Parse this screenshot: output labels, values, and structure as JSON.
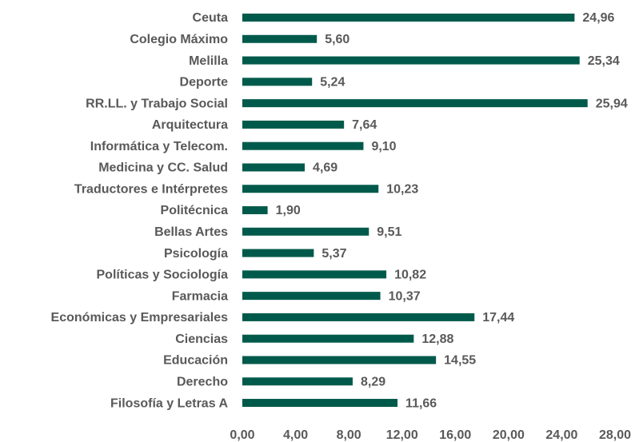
{
  "chart_data": {
    "type": "barh",
    "categories": [
      "Ceuta",
      "Colegio Máximo",
      "Melilla",
      "Deporte",
      "RR.LL. y Trabajo Social",
      "Arquitectura",
      "Informática y Telecom.",
      "Medicina y CC. Salud",
      "Traductores e Intérpretes",
      "Politécnica",
      "Bellas Artes",
      "Psicología",
      "Políticas y Sociología",
      "Farmacia",
      "Económicas y Empresariales",
      "Ciencias",
      "Educación",
      "Derecho",
      "Filosofía y Letras A"
    ],
    "values": [
      24.96,
      5.6,
      25.34,
      5.24,
      25.94,
      7.64,
      9.1,
      4.69,
      10.23,
      1.9,
      9.51,
      5.37,
      10.82,
      10.37,
      17.44,
      12.88,
      14.55,
      8.29,
      11.66
    ],
    "value_labels": [
      "24,96",
      "5,60",
      "25,34",
      "5,24",
      "25,94",
      "7,64",
      "9,10",
      "4,69",
      "10,23",
      "1,90",
      "9,51",
      "5,37",
      "10,82",
      "10,37",
      "17,44",
      "12,88",
      "14,55",
      "8,29",
      "11,66"
    ],
    "color": "#005a4b",
    "xlim": [
      0,
      28
    ],
    "xticks": [
      {
        "value": 0,
        "label": "0,00"
      },
      {
        "value": 4,
        "label": "4,00"
      },
      {
        "value": 8,
        "label": "8,00"
      },
      {
        "value": 12,
        "label": "12,00"
      },
      {
        "value": 16,
        "label": "16,00"
      },
      {
        "value": 20,
        "label": "20,00"
      },
      {
        "value": 24,
        "label": "24,00"
      },
      {
        "value": 28,
        "label": "28,00"
      }
    ],
    "grid": false
  }
}
